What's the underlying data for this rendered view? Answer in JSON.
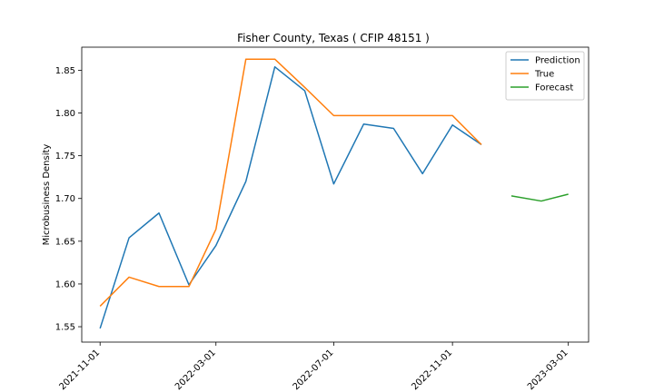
{
  "chart_data": {
    "type": "line",
    "title": "Fisher County, Texas ( CFIP 48151 )",
    "xlabel": "",
    "ylabel": "Microbusiness Density",
    "xlim": [
      "2021-10-13",
      "2023-03-22"
    ],
    "ylim": [
      1.532,
      1.877
    ],
    "x_ticks": [
      "2021-11-01",
      "2022-03-01",
      "2022-07-01",
      "2022-11-01",
      "2023-03-01"
    ],
    "y_ticks": [
      1.55,
      1.6,
      1.65,
      1.7,
      1.75,
      1.8,
      1.85
    ],
    "y_tick_labels": [
      "1.55",
      "1.60",
      "1.65",
      "1.70",
      "1.75",
      "1.80",
      "1.85"
    ],
    "legend_position": "top-right",
    "grid": false,
    "series": [
      {
        "name": "Prediction",
        "color": "#1f77b4",
        "x": [
          "2021-11-01",
          "2021-12-01",
          "2022-01-01",
          "2022-02-01",
          "2022-03-01",
          "2022-04-01",
          "2022-05-01",
          "2022-06-01",
          "2022-07-01",
          "2022-08-01",
          "2022-09-01",
          "2022-10-01",
          "2022-11-01",
          "2022-12-01"
        ],
        "values": [
          1.548,
          1.654,
          1.683,
          1.599,
          1.645,
          1.72,
          1.854,
          1.826,
          1.717,
          1.787,
          1.782,
          1.729,
          1.786,
          1.763
        ]
      },
      {
        "name": "True",
        "color": "#ff7f0e",
        "x": [
          "2021-11-01",
          "2021-12-01",
          "2022-01-01",
          "2022-02-01",
          "2022-03-01",
          "2022-04-01",
          "2022-05-01",
          "2022-06-01",
          "2022-07-01",
          "2022-08-01",
          "2022-09-01",
          "2022-10-01",
          "2022-11-01",
          "2022-12-01"
        ],
        "values": [
          1.574,
          1.608,
          1.597,
          1.597,
          1.664,
          1.863,
          1.863,
          1.83,
          1.797,
          1.797,
          1.797,
          1.797,
          1.797,
          1.763
        ]
      },
      {
        "name": "Forecast",
        "color": "#2ca02c",
        "x": [
          "2023-01-01",
          "2023-02-01",
          "2023-03-01"
        ],
        "values": [
          1.703,
          1.697,
          1.705
        ]
      }
    ]
  }
}
